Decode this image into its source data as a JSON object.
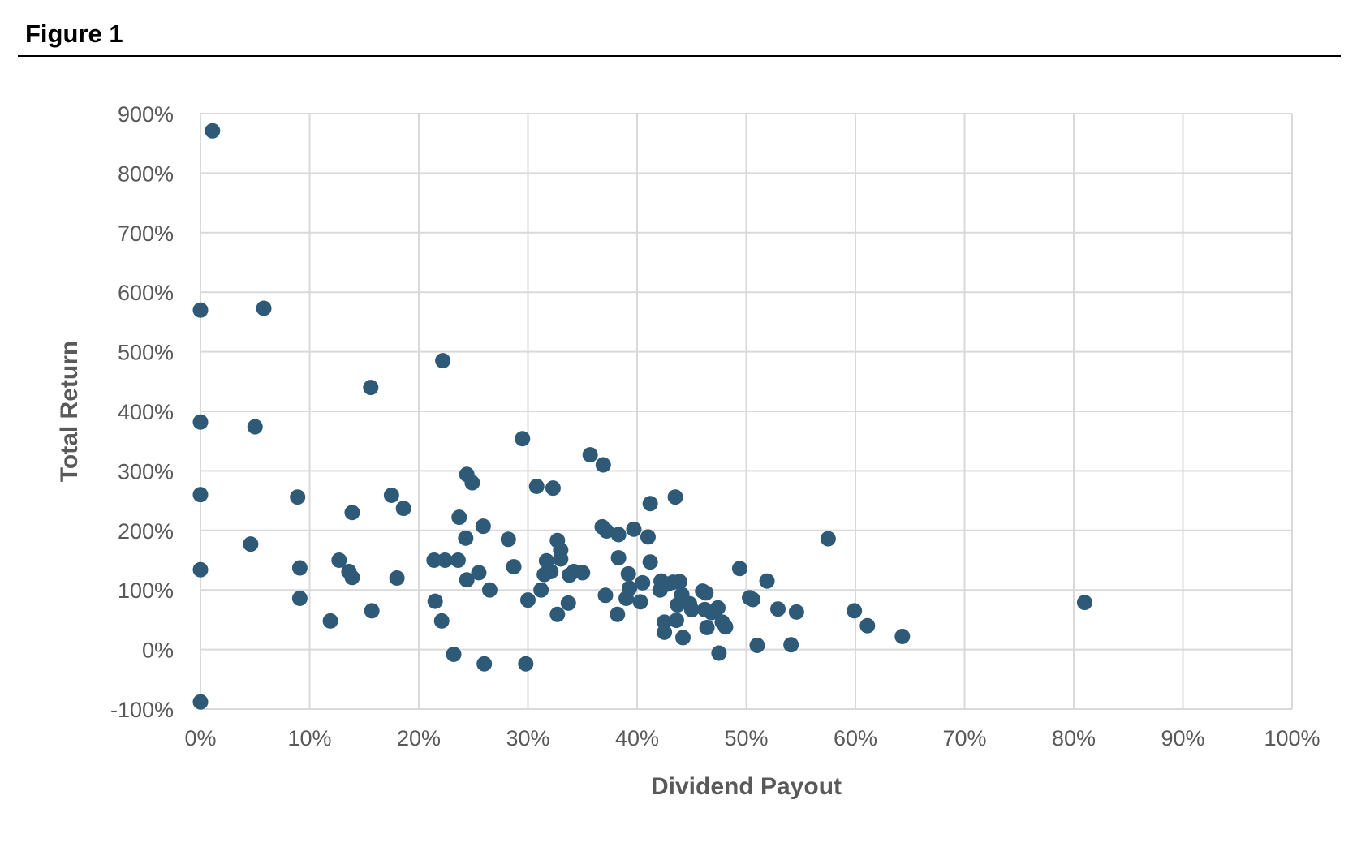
{
  "figure_label": "Figure 1",
  "chart_data": {
    "type": "scatter",
    "title": "",
    "xlabel": "Dividend Payout",
    "ylabel": "Total Return",
    "xlim": [
      0,
      100
    ],
    "ylim": [
      -100,
      900
    ],
    "x_ticks": [
      "0%",
      "10%",
      "20%",
      "30%",
      "40%",
      "50%",
      "60%",
      "70%",
      "80%",
      "90%",
      "100%"
    ],
    "y_ticks": [
      "-100%",
      "0%",
      "100%",
      "200%",
      "300%",
      "400%",
      "500%",
      "600%",
      "700%",
      "800%",
      "900%"
    ],
    "grid": true,
    "legend": "none",
    "marker_color": "#2E5A78",
    "grid_color": "#D9D9D9",
    "points": [
      [
        1.1,
        871
      ],
      [
        0.0,
        570
      ],
      [
        5.8,
        573
      ],
      [
        0.0,
        382
      ],
      [
        5.0,
        374
      ],
      [
        0.0,
        260
      ],
      [
        0.0,
        134
      ],
      [
        0.0,
        -88
      ],
      [
        4.6,
        177
      ],
      [
        8.9,
        256
      ],
      [
        9.1,
        137
      ],
      [
        9.1,
        86
      ],
      [
        11.9,
        48
      ],
      [
        12.7,
        150
      ],
      [
        13.6,
        131
      ],
      [
        13.9,
        121
      ],
      [
        13.9,
        230
      ],
      [
        15.6,
        440
      ],
      [
        15.7,
        65
      ],
      [
        17.5,
        259
      ],
      [
        18.0,
        120
      ],
      [
        18.6,
        237
      ],
      [
        21.4,
        150
      ],
      [
        21.5,
        81
      ],
      [
        22.1,
        48
      ],
      [
        22.2,
        485
      ],
      [
        22.4,
        150
      ],
      [
        23.2,
        -8
      ],
      [
        23.6,
        150
      ],
      [
        23.7,
        222
      ],
      [
        24.3,
        187
      ],
      [
        24.4,
        294
      ],
      [
        24.4,
        117
      ],
      [
        24.9,
        280
      ],
      [
        25.5,
        129
      ],
      [
        25.9,
        207
      ],
      [
        26.0,
        -24
      ],
      [
        26.5,
        100
      ],
      [
        28.2,
        185
      ],
      [
        28.7,
        139
      ],
      [
        29.5,
        354
      ],
      [
        29.8,
        -24
      ],
      [
        30.0,
        83
      ],
      [
        30.8,
        274
      ],
      [
        31.2,
        100
      ],
      [
        31.5,
        126
      ],
      [
        31.7,
        149
      ],
      [
        32.1,
        131
      ],
      [
        32.3,
        271
      ],
      [
        32.7,
        59
      ],
      [
        32.7,
        183
      ],
      [
        33.0,
        167
      ],
      [
        33.0,
        152
      ],
      [
        33.7,
        78
      ],
      [
        33.8,
        125
      ],
      [
        34.2,
        131
      ],
      [
        35.0,
        129
      ],
      [
        35.7,
        327
      ],
      [
        36.8,
        206
      ],
      [
        36.9,
        310
      ],
      [
        37.1,
        91
      ],
      [
        37.2,
        199
      ],
      [
        38.2,
        59
      ],
      [
        38.3,
        193
      ],
      [
        38.3,
        154
      ],
      [
        39.0,
        86
      ],
      [
        39.2,
        127
      ],
      [
        39.3,
        103
      ],
      [
        39.7,
        202
      ],
      [
        40.3,
        80
      ],
      [
        40.5,
        112
      ],
      [
        41.0,
        189
      ],
      [
        41.2,
        147
      ],
      [
        41.2,
        245
      ],
      [
        42.1,
        100
      ],
      [
        42.2,
        115
      ],
      [
        42.5,
        46
      ],
      [
        42.5,
        29
      ],
      [
        42.8,
        110
      ],
      [
        43.3,
        113
      ],
      [
        43.5,
        256
      ],
      [
        43.6,
        49
      ],
      [
        43.7,
        75
      ],
      [
        43.9,
        114
      ],
      [
        44.1,
        92
      ],
      [
        44.2,
        20
      ],
      [
        44.8,
        77
      ],
      [
        45.0,
        67
      ],
      [
        46.0,
        98
      ],
      [
        46.2,
        67
      ],
      [
        46.3,
        95
      ],
      [
        46.4,
        37
      ],
      [
        46.8,
        62
      ],
      [
        47.4,
        70
      ],
      [
        47.5,
        -6
      ],
      [
        47.8,
        46
      ],
      [
        48.1,
        38
      ],
      [
        49.4,
        136
      ],
      [
        50.3,
        87
      ],
      [
        50.6,
        84
      ],
      [
        51.0,
        7
      ],
      [
        51.9,
        115
      ],
      [
        52.9,
        68
      ],
      [
        54.1,
        8
      ],
      [
        54.6,
        63
      ],
      [
        57.5,
        186
      ],
      [
        59.9,
        65
      ],
      [
        61.1,
        40
      ],
      [
        64.3,
        22
      ],
      [
        81.0,
        79
      ]
    ]
  }
}
